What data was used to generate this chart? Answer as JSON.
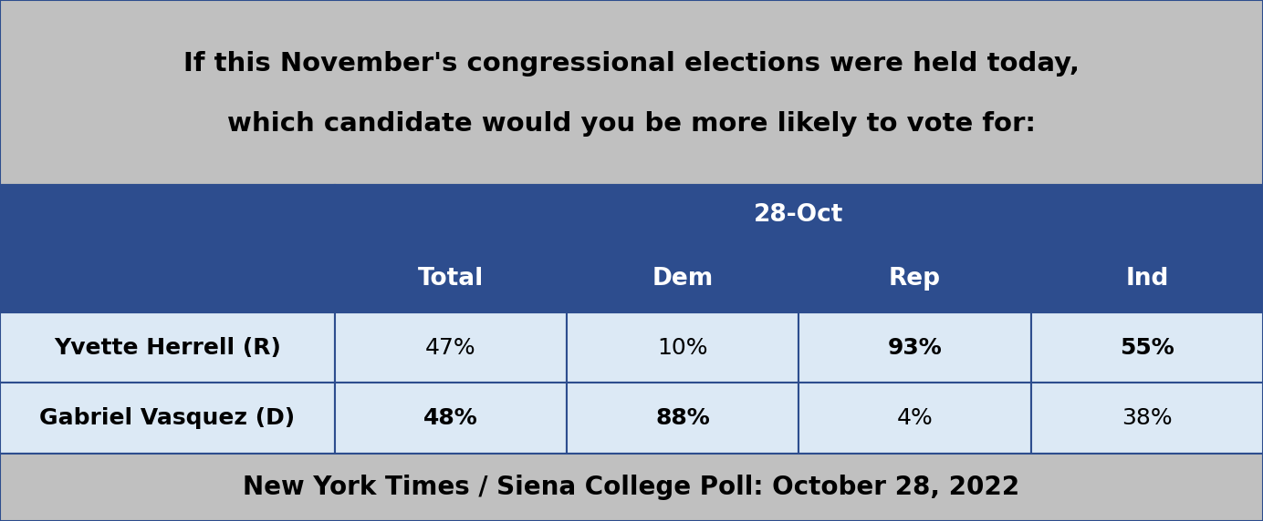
{
  "title_line1": "If this November's congressional elections were held today,",
  "title_line2": "which candidate would you be more likely to vote for:",
  "date_header": "28-Oct",
  "col_headers": [
    "Total",
    "Dem",
    "Rep",
    "Ind"
  ],
  "rows": [
    {
      "label": "Yvette Herrell (R)",
      "values": [
        "47%",
        "10%",
        "93%",
        "55%"
      ],
      "bold_values": [
        false,
        false,
        true,
        true
      ]
    },
    {
      "label": "Gabriel Vasquez (D)",
      "values": [
        "48%",
        "88%",
        "4%",
        "38%"
      ],
      "bold_values": [
        true,
        true,
        false,
        false
      ]
    }
  ],
  "footer": "New York Times / Siena College Poll: October 28, 2022",
  "bg_title": "#c0c0c0",
  "bg_header": "#2d4d8e",
  "bg_row1": "#dce9f5",
  "bg_row2": "#dce9f5",
  "bg_footer": "#c0c0c0",
  "text_header": "#ffffff",
  "text_dark": "#000000",
  "border_color": "#2d4d8e",
  "title_fontsize": 21,
  "header_fontsize": 19,
  "cell_fontsize": 18,
  "footer_fontsize": 20
}
